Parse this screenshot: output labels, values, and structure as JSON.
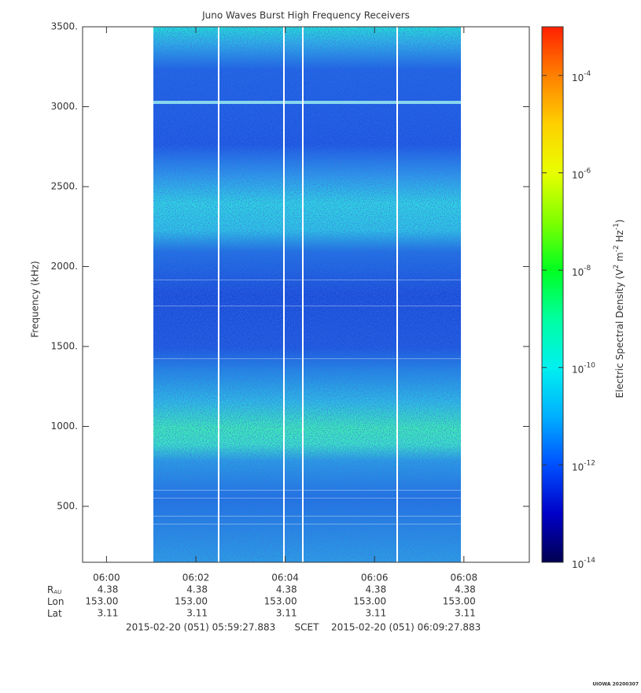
{
  "chart_data": {
    "type": "spectrogram",
    "title": "Juno Waves Burst High Frequency Receivers",
    "ylabel": "Frequency (kHz)",
    "ylim": [
      150,
      3500
    ],
    "yticks": [
      {
        "value": 500,
        "label": "500."
      },
      {
        "value": 1000,
        "label": "1000."
      },
      {
        "value": 1500,
        "label": "1500."
      },
      {
        "value": 2000,
        "label": "2000."
      },
      {
        "value": 2500,
        "label": "2500."
      },
      {
        "value": 3000,
        "label": "3000."
      },
      {
        "value": 3500,
        "label": "3500."
      }
    ],
    "xlim": [
      359.4647,
      369.4647
    ],
    "xticks": [
      {
        "value": 360,
        "label": "06:00"
      },
      {
        "value": 362,
        "label": "06:02"
      },
      {
        "value": 364,
        "label": "06:04"
      },
      {
        "value": 366,
        "label": "06:06"
      },
      {
        "value": 368,
        "label": "06:08"
      }
    ],
    "ephemeris": [
      {
        "label": "R",
        "sub": "AU",
        "values": [
          "4.38",
          "4.38",
          "4.38",
          "4.38",
          "4.38"
        ]
      },
      {
        "label": "Lon",
        "values": [
          "153.00",
          "153.00",
          "153.00",
          "153.00",
          "153.00"
        ]
      },
      {
        "label": "Lat",
        "values": [
          "3.11",
          "3.11",
          "3.11",
          "3.11",
          "3.11"
        ]
      }
    ],
    "time_range": {
      "start": "2015-02-20 (051) 05:59:27.883",
      "system": "SCET",
      "end": "2015-02-20 (051) 06:09:27.883"
    },
    "colorbar": {
      "scale": "log",
      "zlim": [
        1e-14,
        0.001
      ],
      "ticks": [
        {
          "value": 1e-14,
          "label": "10",
          "sup": "-14"
        },
        {
          "value": 1e-12,
          "label": "10",
          "sup": "-12"
        },
        {
          "value": 1e-10,
          "label": "10",
          "sup": "-10"
        },
        {
          "value": 1e-08,
          "label": "10",
          "sup": "-8"
        },
        {
          "value": 1e-06,
          "label": "10",
          "sup": "-6"
        },
        {
          "value": 0.0001,
          "label": "10",
          "sup": "-4"
        }
      ],
      "label_parts": [
        "Electric Spectral Density (V",
        "2",
        " m",
        "-2",
        " Hz",
        "-1",
        ")"
      ],
      "colormap": [
        "#000050",
        "#0000c8",
        "#0050ff",
        "#00b0ff",
        "#00f0f0",
        "#00ffa0",
        "#00ff20",
        "#80ff00",
        "#e8ff00",
        "#ffd000",
        "#ff8000",
        "#ff2000"
      ]
    },
    "footer": "UIOWA 20200307"
  }
}
